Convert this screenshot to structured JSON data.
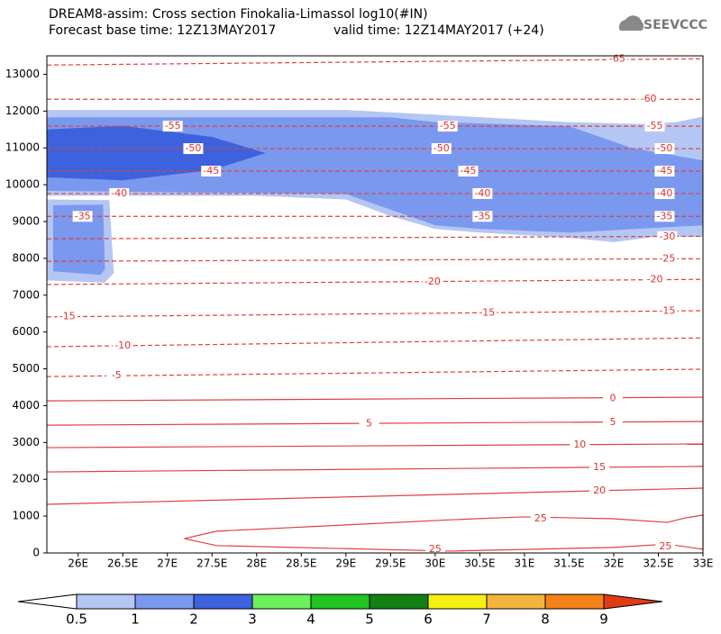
{
  "chart_data": {
    "type": "contour",
    "title": "DREAM8-assim: Cross section Finokalia-Limassol log10(#IN)",
    "subtitle": "Forecast base time: 12Z13MAY2017",
    "valid_time": "valid time: 12Z14MAY2017 (+24)",
    "logo": "SEEVCCC",
    "xlim": [
      25.65,
      33
    ],
    "ylim": [
      0,
      13500
    ],
    "xticks": [
      {
        "value": 26,
        "label": "26E"
      },
      {
        "value": 26.5,
        "label": "26.5E"
      },
      {
        "value": 27,
        "label": "27E"
      },
      {
        "value": 27.5,
        "label": "27.5E"
      },
      {
        "value": 28,
        "label": "28E"
      },
      {
        "value": 28.5,
        "label": "28.5E"
      },
      {
        "value": 29,
        "label": "29E"
      },
      {
        "value": 29.5,
        "label": "29.5E"
      },
      {
        "value": 30,
        "label": "30E"
      },
      {
        "value": 30.5,
        "label": "30.5E"
      },
      {
        "value": 31,
        "label": "31E"
      },
      {
        "value": 31.5,
        "label": "31.5E"
      },
      {
        "value": 32,
        "label": "32E"
      },
      {
        "value": 32.5,
        "label": "32.5E"
      },
      {
        "value": 33,
        "label": "33E"
      }
    ],
    "yticks": [
      0,
      1000,
      2000,
      3000,
      4000,
      5000,
      6000,
      7000,
      8000,
      9000,
      10000,
      11000,
      12000,
      13000
    ],
    "colorbar": {
      "levels": [
        0.5,
        1,
        2,
        3,
        4,
        5,
        6,
        7,
        8,
        9
      ],
      "colors": [
        "#ffffff",
        "#b4c6f4",
        "#7a98ee",
        "#3c62de",
        "#6cf05c",
        "#22c422",
        "#128012",
        "#f4f014",
        "#f4b43c",
        "#f48218",
        "#e03c14"
      ]
    },
    "fills": [
      {
        "level": 0.5,
        "x": [
          25.65,
          29,
          30,
          31.5,
          32.3,
          32.7,
          33,
          33,
          32.5,
          32,
          31.5,
          30.5,
          30,
          29.5,
          29,
          28,
          25.65
        ],
        "y": [
          12030,
          12030,
          11900,
          11700,
          11650,
          11700,
          11850,
          8580,
          8600,
          8440,
          8560,
          8700,
          8800,
          9150,
          9600,
          9700,
          9700
        ]
      },
      {
        "level": 0.5,
        "x": [
          25.65,
          26.35,
          26.4,
          26.3,
          25.65
        ],
        "y": [
          9600,
          9580,
          7600,
          7340,
          7400
        ]
      },
      {
        "level": 1,
        "x": [
          25.65,
          29.5,
          30,
          31.5,
          32.2,
          33,
          33,
          31.5,
          30.5,
          30,
          29,
          25.65
        ],
        "y": [
          11830,
          11830,
          11700,
          11590,
          11000,
          10660,
          8900,
          8700,
          8800,
          8900,
          9750,
          9830
        ]
      },
      {
        "level": 1,
        "x": [
          25.72,
          26.28,
          26.3,
          26.25,
          25.72
        ],
        "y": [
          9440,
          9460,
          7700,
          7550,
          7650
        ]
      },
      {
        "level": 2,
        "x": [
          25.65,
          26.5,
          27.5,
          28.1,
          27.5,
          26.5,
          25.65
        ],
        "y": [
          11500,
          11600,
          11300,
          10860,
          10400,
          10120,
          10200
        ]
      }
    ],
    "contours": [
      {
        "level": -65,
        "x": [
          25.65,
          33
        ],
        "y": [
          13250,
          13420
        ],
        "label_x": [
          32.04
        ],
        "label_y": [
          13420
        ]
      },
      {
        "level": -60,
        "x": [
          25.65,
          33
        ],
        "y": [
          12320,
          12320
        ],
        "label_x": [
          32.39
        ],
        "label_y": [
          12320
        ]
      },
      {
        "level": -55,
        "x": [
          25.65,
          33
        ],
        "y": [
          11590,
          11590
        ],
        "label_x": [
          27.06,
          30.14,
          32.46
        ],
        "label_y": [
          11590,
          11590,
          11590
        ]
      },
      {
        "level": -50,
        "x": [
          25.65,
          33
        ],
        "y": [
          10980,
          10980
        ],
        "label_x": [
          27.29,
          30.07,
          32.57
        ],
        "label_y": [
          10980,
          10980,
          10980
        ]
      },
      {
        "level": -45,
        "x": [
          25.65,
          33
        ],
        "y": [
          10370,
          10370
        ],
        "label_x": [
          27.49,
          30.37,
          32.57
        ],
        "label_y": [
          10370,
          10370,
          10370
        ]
      },
      {
        "level": -40,
        "x": [
          25.65,
          33
        ],
        "y": [
          9760,
          9760
        ],
        "label_x": [
          26.46,
          30.53,
          32.57
        ],
        "label_y": [
          9760,
          9760,
          9760
        ]
      },
      {
        "level": -35,
        "x": [
          25.65,
          33
        ],
        "y": [
          9140,
          9140
        ],
        "label_x": [
          26.05,
          30.53,
          32.57
        ],
        "label_y": [
          9140,
          9140,
          9140
        ]
      },
      {
        "level": -30,
        "x": [
          25.65,
          33
        ],
        "y": [
          8530,
          8600
        ],
        "label_x": [
          32.6
        ],
        "label_y": [
          8590
        ]
      },
      {
        "level": -25,
        "x": [
          25.65,
          33
        ],
        "y": [
          7920,
          7990
        ],
        "label_x": [
          32.6
        ],
        "label_y": [
          7980
        ]
      },
      {
        "level": -20,
        "x": [
          25.65,
          33
        ],
        "y": [
          7290,
          7430
        ],
        "label_x": [
          29.97,
          32.46
        ],
        "label_y": [
          7360,
          7420
        ]
      },
      {
        "level": -15,
        "x": [
          25.65,
          33
        ],
        "y": [
          6410,
          6580
        ],
        "label_x": [
          25.88,
          30.58,
          32.6
        ],
        "label_y": [
          6420,
          6520,
          6570
        ]
      },
      {
        "level": -10,
        "x": [
          25.65,
          33
        ],
        "y": [
          5600,
          5840
        ],
        "label_x": [
          26.5
        ],
        "label_y": [
          5630
        ]
      },
      {
        "level": -5,
        "x": [
          25.65,
          33
        ],
        "y": [
          4790,
          4990
        ],
        "label_x": [
          26.43
        ],
        "label_y": [
          4820
        ]
      },
      {
        "level": 0,
        "x": [
          25.65,
          33
        ],
        "y": [
          4130,
          4230
        ],
        "label_x": [
          31.99
        ],
        "label_y": [
          4200
        ]
      },
      {
        "level": 5,
        "x": [
          25.65,
          33
        ],
        "y": [
          3470,
          3570
        ],
        "label_x": [
          29.26,
          31.99
        ],
        "label_y": [
          3510,
          3550
        ]
      },
      {
        "level": 10,
        "x": [
          25.65,
          33
        ],
        "y": [
          2860,
          2960
        ],
        "label_x": [
          31.62
        ],
        "label_y": [
          2940
        ]
      },
      {
        "level": 15,
        "x": [
          25.65,
          33
        ],
        "y": [
          2200,
          2350
        ],
        "label_x": [
          31.84
        ],
        "label_y": [
          2320
        ]
      },
      {
        "level": 20,
        "x": [
          25.65,
          33
        ],
        "y": [
          1320,
          1760
        ],
        "label_x": [
          31.84
        ],
        "label_y": [
          1690
        ]
      },
      {
        "level": 25,
        "x": [
          27.19,
          27.55,
          29.16,
          30.17,
          30.98,
          31.99,
          32.6,
          32.8,
          33,
          33,
          32.6,
          31.99,
          30.17,
          27.55,
          27.19
        ],
        "y": [
          390,
          590,
          780,
          900,
          980,
          930,
          830,
          950,
          1030,
          100,
          240,
          150,
          50,
          200,
          390
        ],
        "label_x": [
          31.18,
          30.0,
          32.58
        ],
        "label_y": [
          930,
          100,
          170
        ]
      }
    ]
  }
}
